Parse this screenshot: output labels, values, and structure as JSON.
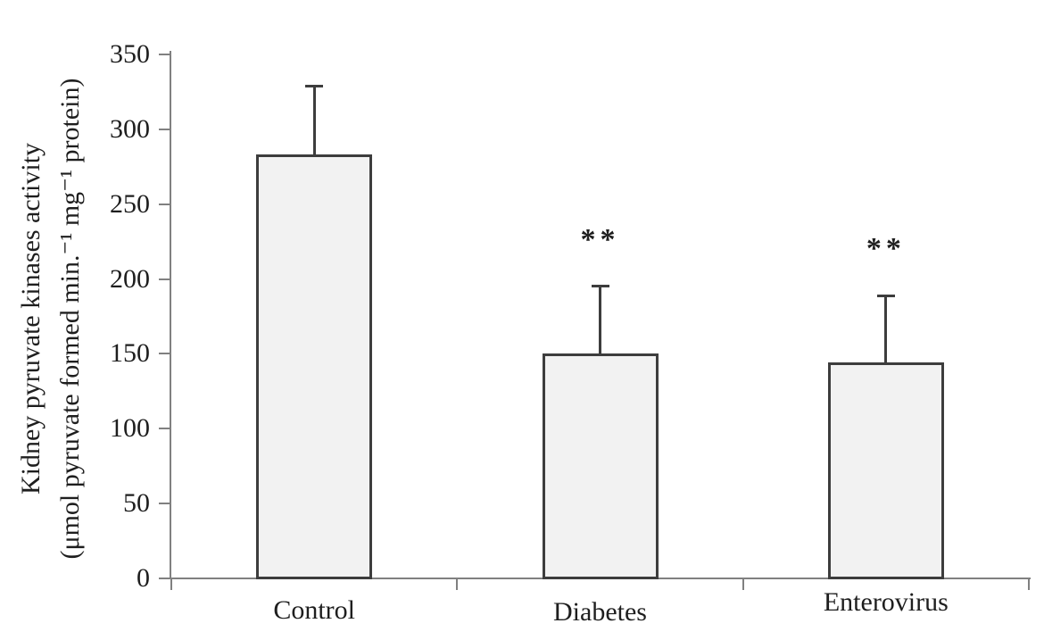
{
  "chart_data": {
    "type": "bar",
    "title": "",
    "categories": [
      "Control",
      "Diabetes",
      "Enterovirus"
    ],
    "values": [
      283,
      150,
      144
    ],
    "errors_up": [
      46,
      45,
      45
    ],
    "annotations": [
      "",
      "**",
      "**"
    ],
    "ylabel_line1": "Kidney pyruvate kinases activity",
    "ylabel_line2": "(μmol pyruvate formed min.⁻¹ mg⁻¹ protein)",
    "xlabel": "",
    "ylim": [
      0,
      350
    ],
    "ytick_step": 50,
    "ytick_labels": [
      "0",
      "50",
      "100",
      "150",
      "200",
      "250",
      "300",
      "350"
    ],
    "grid": false,
    "legend": "none",
    "bar_fill": "#f2f2f2",
    "bar_border": "#3d3d3d",
    "axis_color": "#808080",
    "text_color": "#1e1e1e"
  }
}
